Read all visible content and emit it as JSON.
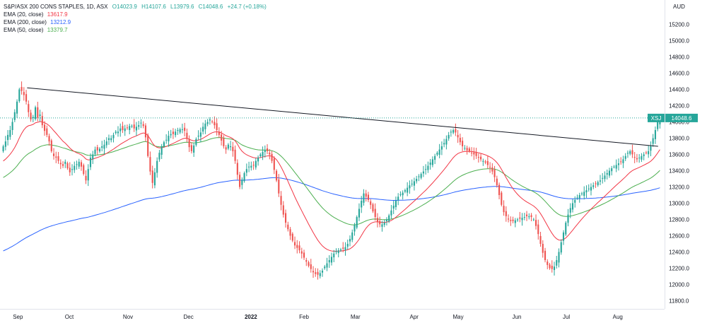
{
  "legend": {
    "symbol": "S&P/ASX 200 CONS STAPLES, 1D, ASX",
    "open": "O14023.9",
    "high": "H14107.6",
    "low": "L13979.6",
    "close": "C14048.6",
    "change": "+24.7 (+0.18%)",
    "ema20": {
      "label": "EMA (20, close)",
      "value": "13617.9"
    },
    "ema200": {
      "label": "EMA (200, close)",
      "value": "13212.9"
    },
    "ema50": {
      "label": "EMA (50, close)",
      "value": "13379.7"
    }
  },
  "price_tag": {
    "ticker": "XSJ",
    "value": "14048.6"
  },
  "currency": "AUD",
  "colors": {
    "up": "#26a69a",
    "down": "#ef5350",
    "ema20": "#f23645",
    "ema200": "#2962ff",
    "ema50": "#4caf50",
    "trendline": "#131722",
    "last_price": "#26a69a",
    "axis_text": "#131722"
  },
  "chart_data": {
    "type": "candlestick",
    "y_axis": {
      "min": 11700,
      "max": 15500,
      "ticks": [
        "15200.0",
        "15000.0",
        "14800.0",
        "14600.0",
        "14400.0",
        "14200.0",
        "14000.0",
        "13800.0",
        "13600.0",
        "13400.0",
        "13200.0",
        "13000.0",
        "12800.0",
        "12600.0",
        "12400.0",
        "12200.0",
        "12000.0",
        "11800.0"
      ]
    },
    "x_axis": {
      "labels": [
        {
          "text": "Sep",
          "day": 9
        },
        {
          "text": "Oct",
          "day": 37
        },
        {
          "text": "Nov",
          "day": 69
        },
        {
          "text": "Dec",
          "day": 102
        },
        {
          "text": "2022",
          "day": 136
        },
        {
          "text": "Feb",
          "day": 165
        },
        {
          "text": "Mar",
          "day": 193
        },
        {
          "text": "Apr",
          "day": 225
        },
        {
          "text": "May",
          "day": 249
        },
        {
          "text": "Jun",
          "day": 281
        },
        {
          "text": "Jul",
          "day": 308
        },
        {
          "text": "Aug",
          "day": 336
        }
      ],
      "days": 360
    },
    "closes": [
      13700,
      13760,
      13840,
      13900,
      14000,
      14120,
      14250,
      14400,
      14380,
      14330,
      14250,
      14120,
      14030,
      14060,
      14180,
      14050,
      14090,
      13960,
      13890,
      13840,
      13760,
      13640,
      13580,
      13560,
      13520,
      13480,
      13460,
      13510,
      13430,
      13380,
      13420,
      13460,
      13480,
      13510,
      13450,
      13360,
      13280,
      13420,
      13560,
      13600,
      13660,
      13650,
      13670,
      13700,
      13720,
      13760,
      13800,
      13800,
      13840,
      13880,
      13880,
      13920,
      13900,
      13920,
      13930,
      13950,
      13950,
      13920,
      13940,
      13960,
      13990,
      13950,
      13810,
      13580,
      13390,
      13250,
      13380,
      13520,
      13620,
      13700,
      13750,
      13780,
      13830,
      13850,
      13850,
      13880,
      13900,
      13910,
      13910,
      13890,
      13790,
      13690,
      13640,
      13710,
      13790,
      13830,
      13870,
      13940,
      13980,
      14000,
      14030,
      14000,
      13960,
      13900,
      13840,
      13770,
      13700,
      13660,
      13720,
      13700,
      13640,
      13520,
      13350,
      13200,
      13290,
      13370,
      13420,
      13450,
      13460,
      13470,
      13520,
      13560,
      13600,
      13630,
      13650,
      13640,
      13600,
      13520,
      13410,
      13280,
      13120,
      12980,
      12860,
      12760,
      12680,
      12600,
      12540,
      12480,
      12450,
      12420,
      12380,
      12330,
      12280,
      12230,
      12190,
      12150,
      12130,
      12120,
      12140,
      12170,
      12220,
      12260,
      12300,
      12340,
      12380,
      12410,
      12420,
      12430,
      12440,
      12460,
      12500,
      12560,
      12640,
      12730,
      12830,
      12930,
      13030,
      13120,
      13080,
      13040,
      12980,
      12900,
      12830,
      12770,
      12740,
      12740,
      12760,
      12800,
      12850,
      12910,
      12970,
      13030,
      13080,
      13110,
      13130,
      13160,
      13190,
      13220,
      13240,
      13270,
      13300,
      13330,
      13360,
      13390,
      13420,
      13460,
      13500,
      13540,
      13580,
      13620,
      13660,
      13700,
      13740,
      13790,
      13840,
      13880,
      13900,
      13870,
      13810,
      13750,
      13700,
      13680,
      13650,
      13640,
      13620,
      13600,
      13580,
      13560,
      13540,
      13520,
      13500,
      13470,
      13440,
      13390,
      13320,
      13220,
      13100,
      12980,
      12890,
      12840,
      12800,
      12780,
      12780,
      12790,
      12800,
      12810,
      12820,
      12830,
      12840,
      12840,
      12830,
      12800,
      12720,
      12620,
      12500,
      12390,
      12300,
      12240,
      12200,
      12190,
      12220,
      12300,
      12400,
      12520,
      12640,
      12760,
      12860,
      12940,
      13000,
      13040,
      13070,
      13100,
      13120,
      13140,
      13160,
      13180,
      13200,
      13220,
      13240,
      13260,
      13280,
      13310,
      13340,
      13370,
      13400,
      13430,
      13450,
      13470,
      13490,
      13510,
      13540,
      13580,
      13620,
      13640,
      13600,
      13560,
      13540,
      13560,
      13580,
      13600,
      13620,
      13640,
      13700,
      13800,
      13900,
      14000,
      14050
    ],
    "series": [
      {
        "name": "EMA (20, close)",
        "value_label": "13617.9"
      },
      {
        "name": "EMA (50, close)",
        "value_label": "13379.7"
      },
      {
        "name": "EMA (200, close)",
        "value_label": "13212.9"
      }
    ],
    "trendline": {
      "x1": 14,
      "y1": 14420,
      "x2": 358,
      "y2": 13700
    }
  }
}
